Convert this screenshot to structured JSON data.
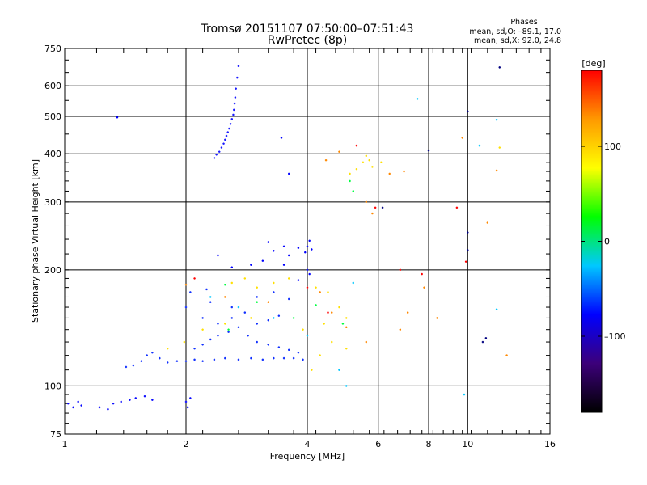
{
  "header": {
    "title_line1": "Tromsø 20151107 07:50:00–07:51:43",
    "title_line2": "RwPretec (8p)"
  },
  "stats": {
    "heading": "Phases",
    "line_o": "mean, sd,O: –89.1, 17.0",
    "line_x": "mean, sd,X:  92.0, 24.8"
  },
  "chart_data": {
    "type": "scatter",
    "xlabel": "Frequency [MHz]",
    "ylabel": "Stationary phase Virtual Height [km]",
    "x_scale": "log",
    "y_scale": "log",
    "xlim": [
      1,
      16
    ],
    "ylim": [
      75,
      750
    ],
    "x_major_ticks": [
      1,
      2,
      4,
      6,
      8,
      10,
      16
    ],
    "x_tick_labels": [
      "1",
      "2",
      "4",
      "6",
      "8",
      "10",
      "16"
    ],
    "y_major_ticks": [
      75,
      100,
      200,
      300,
      400,
      500,
      600,
      750
    ],
    "y_tick_labels": [
      "75",
      "100",
      "200",
      "300",
      "400",
      "500",
      "600",
      "750"
    ],
    "grid": true,
    "colorbar": {
      "label": "[deg]",
      "range": [
        -180,
        180
      ],
      "ticks": [
        100,
        0,
        -100
      ],
      "tick_labels": [
        "100",
        "0",
        "–100"
      ],
      "colors": [
        "#000000",
        "#3c007a",
        "#0000ff",
        "#00c8ff",
        "#00ff00",
        "#ffff00",
        "#ff9900",
        "#ff0000"
      ]
    },
    "series": [
      {
        "color": "#1a1aff",
        "points": [
          [
            2.35,
            390
          ],
          [
            2.38,
            398
          ],
          [
            2.42,
            405
          ],
          [
            2.45,
            415
          ],
          [
            2.48,
            425
          ],
          [
            2.5,
            435
          ],
          [
            2.52,
            445
          ],
          [
            2.54,
            455
          ],
          [
            2.56,
            465
          ],
          [
            2.58,
            478
          ],
          [
            2.6,
            492
          ],
          [
            2.62,
            505
          ],
          [
            2.63,
            520
          ],
          [
            2.64,
            540
          ],
          [
            2.65,
            560
          ],
          [
            2.66,
            590
          ],
          [
            2.68,
            630
          ],
          [
            2.7,
            675
          ]
        ]
      },
      {
        "color": "#0a0aff",
        "points": [
          [
            1.02,
            90
          ],
          [
            1.05,
            88
          ],
          [
            1.08,
            91
          ],
          [
            1.1,
            89
          ],
          [
            1.22,
            88
          ],
          [
            1.28,
            87
          ],
          [
            1.32,
            90
          ],
          [
            1.38,
            91
          ],
          [
            1.45,
            92
          ],
          [
            1.5,
            93
          ],
          [
            1.58,
            94
          ],
          [
            1.65,
            92
          ],
          [
            2.0,
            91
          ],
          [
            2.02,
            88
          ],
          [
            2.05,
            93
          ]
        ]
      },
      {
        "color": "#1030ff",
        "points": [
          [
            1.42,
            112
          ],
          [
            1.48,
            113
          ],
          [
            1.55,
            116
          ],
          [
            1.6,
            120
          ],
          [
            1.65,
            122
          ],
          [
            1.72,
            118
          ],
          [
            1.8,
            115
          ],
          [
            1.9,
            116
          ],
          [
            2.0,
            116
          ],
          [
            2.1,
            117
          ],
          [
            2.2,
            116
          ],
          [
            2.35,
            117
          ],
          [
            2.5,
            118
          ],
          [
            2.7,
            117
          ],
          [
            2.9,
            118
          ],
          [
            3.1,
            117
          ],
          [
            3.3,
            118
          ],
          [
            3.5,
            118
          ],
          [
            3.7,
            118
          ],
          [
            3.9,
            117
          ],
          [
            2.1,
            125
          ],
          [
            2.2,
            128
          ],
          [
            2.3,
            132
          ],
          [
            2.4,
            135
          ],
          [
            2.55,
            138
          ],
          [
            2.7,
            142
          ],
          [
            2.85,
            135
          ],
          [
            3.0,
            130
          ],
          [
            3.2,
            128
          ],
          [
            3.4,
            126
          ],
          [
            3.6,
            124
          ],
          [
            3.8,
            122
          ],
          [
            2.2,
            150
          ],
          [
            2.4,
            145
          ],
          [
            2.6,
            150
          ],
          [
            2.8,
            155
          ],
          [
            3.0,
            145
          ],
          [
            3.2,
            148
          ],
          [
            3.4,
            152
          ],
          [
            2.0,
            160
          ],
          [
            2.3,
            165
          ],
          [
            2.6,
            160
          ],
          [
            3.0,
            170
          ],
          [
            3.3,
            175
          ],
          [
            3.6,
            168
          ],
          [
            2.05,
            175
          ],
          [
            2.25,
            178
          ]
        ]
      },
      {
        "color": "#0000ff",
        "points": [
          [
            3.2,
            236
          ],
          [
            3.3,
            224
          ],
          [
            3.5,
            230
          ],
          [
            3.6,
            218
          ],
          [
            3.8,
            228
          ],
          [
            3.95,
            222
          ],
          [
            4.0,
            230
          ],
          [
            4.05,
            238
          ],
          [
            4.1,
            226
          ],
          [
            2.4,
            218
          ],
          [
            2.6,
            203
          ],
          [
            2.9,
            206
          ],
          [
            3.1,
            211
          ],
          [
            3.5,
            206
          ],
          [
            4.0,
            200
          ],
          [
            4.05,
            195
          ],
          [
            3.8,
            188
          ],
          [
            1.35,
            497
          ],
          [
            3.45,
            440
          ],
          [
            3.6,
            355
          ]
        ]
      },
      {
        "color": "#ffe000",
        "points": [
          [
            2.6,
            185
          ],
          [
            2.8,
            190
          ],
          [
            3.0,
            180
          ],
          [
            3.3,
            185
          ],
          [
            3.6,
            190
          ],
          [
            4.2,
            180
          ],
          [
            4.5,
            175
          ],
          [
            4.8,
            160
          ],
          [
            5.0,
            150
          ],
          [
            4.4,
            145
          ],
          [
            3.9,
            140
          ],
          [
            4.6,
            130
          ],
          [
            5.0,
            125
          ],
          [
            4.3,
            120
          ],
          [
            4.1,
            110
          ],
          [
            1.8,
            125
          ],
          [
            1.98,
            130
          ],
          [
            2.2,
            140
          ],
          [
            2.5,
            145
          ],
          [
            2.9,
            150
          ],
          [
            5.1,
            355
          ],
          [
            5.3,
            365
          ],
          [
            5.5,
            380
          ],
          [
            5.6,
            395
          ],
          [
            5.7,
            385
          ],
          [
            5.8,
            370
          ],
          [
            6.1,
            380
          ],
          [
            12.0,
            415
          ]
        ]
      },
      {
        "color": "#ff8800",
        "points": [
          [
            2.0,
            183
          ],
          [
            2.5,
            170
          ],
          [
            3.2,
            165
          ],
          [
            4.3,
            175
          ],
          [
            4.6,
            155
          ],
          [
            5.0,
            142
          ],
          [
            5.6,
            130
          ],
          [
            6.8,
            140
          ],
          [
            7.1,
            155
          ],
          [
            4.45,
            385
          ],
          [
            4.8,
            405
          ],
          [
            5.6,
            300
          ],
          [
            5.8,
            280
          ],
          [
            6.4,
            355
          ],
          [
            6.95,
            360
          ],
          [
            7.8,
            180
          ],
          [
            8.4,
            150
          ],
          [
            9.7,
            440
          ],
          [
            11.2,
            265
          ],
          [
            11.8,
            362
          ],
          [
            12.5,
            120
          ]
        ]
      },
      {
        "color": "#ff0000",
        "points": [
          [
            2.1,
            190
          ],
          [
            4.0,
            180
          ],
          [
            4.5,
            155
          ],
          [
            5.3,
            420
          ],
          [
            5.9,
            290
          ],
          [
            6.8,
            200
          ],
          [
            7.7,
            195
          ],
          [
            9.4,
            290
          ],
          [
            9.9,
            210
          ]
        ]
      },
      {
        "color": "#00ff40",
        "points": [
          [
            2.5,
            183
          ],
          [
            3.0,
            165
          ],
          [
            3.7,
            150
          ],
          [
            4.2,
            162
          ],
          [
            4.9,
            145
          ],
          [
            5.2,
            320
          ],
          [
            5.1,
            340
          ],
          [
            2.55,
            140
          ]
        ]
      },
      {
        "color": "#00c8ff",
        "points": [
          [
            2.3,
            170
          ],
          [
            2.7,
            160
          ],
          [
            3.3,
            150
          ],
          [
            4.0,
            135
          ],
          [
            4.8,
            110
          ],
          [
            5.0,
            100
          ],
          [
            5.2,
            185
          ],
          [
            7.5,
            555
          ],
          [
            9.8,
            95
          ],
          [
            11.8,
            490
          ],
          [
            10.7,
            420
          ],
          [
            11.8,
            158
          ]
        ]
      },
      {
        "color": "#000080",
        "points": [
          [
            10.0,
            515
          ],
          [
            12.0,
            670
          ],
          [
            10.0,
            250
          ],
          [
            10.0,
            225
          ],
          [
            10.9,
            130
          ],
          [
            11.1,
            133
          ],
          [
            6.15,
            290
          ],
          [
            8.0,
            408
          ]
        ]
      }
    ]
  }
}
